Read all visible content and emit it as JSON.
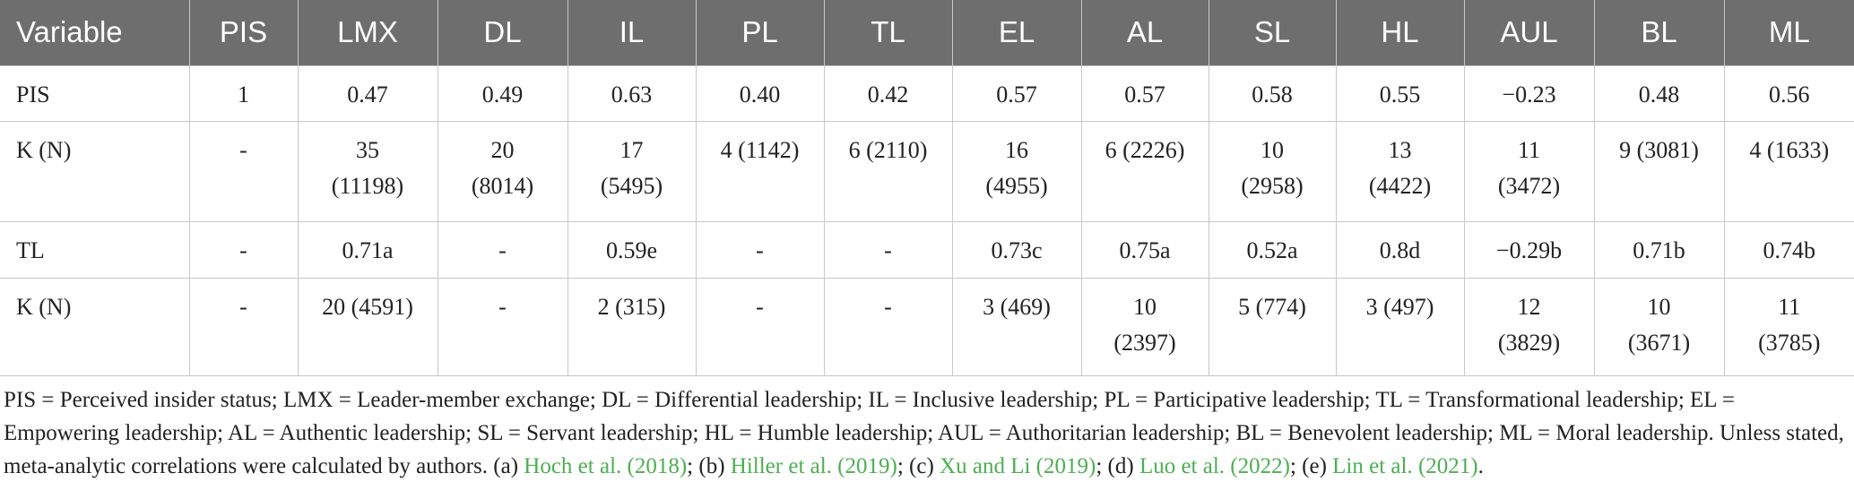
{
  "table": {
    "header": [
      "Variable",
      "PIS",
      "LMX",
      "DL",
      "IL",
      "PL",
      "TL",
      "EL",
      "AL",
      "SL",
      "HL",
      "AUL",
      "BL",
      "ML"
    ],
    "rows": [
      [
        "PIS",
        "1",
        "0.47",
        "0.49",
        "0.63",
        "0.40",
        "0.42",
        "0.57",
        "0.57",
        "0.58",
        "0.55",
        "−0.23",
        "0.48",
        "0.56"
      ],
      [
        "K (N)",
        "-",
        "35 (11198)",
        "20 (8014)",
        "17 (5495)",
        "4 (1142)",
        "6 (2110)",
        "16 (4955)",
        "6 (2226)",
        "10 (2958)",
        "13 (4422)",
        "11 (3472)",
        "9 (3081)",
        "4 (1633)"
      ],
      [
        "TL",
        "-",
        "0.71a",
        "-",
        "0.59e",
        "-",
        "-",
        "0.73c",
        "0.75a",
        "0.52a",
        "0.8d",
        "−0.29b",
        "0.71b",
        "0.74b"
      ],
      [
        "K (N)",
        "-",
        "20 (4591)",
        "-",
        "2 (315)",
        "-",
        "-",
        "3 (469)",
        "10 (2397)",
        "5 (774)",
        "3 (497)",
        "12 (3829)",
        "10 (3671)",
        "11 (3785)"
      ]
    ]
  },
  "footnote": [
    {
      "text": "PIS = Perceived insider status; LMX = Leader-member exchange; DL = Differential leadership; IL = Inclusive leadership; PL = Participative leadership; TL = Transformational leadership; EL = Empowering leadership; AL = Authentic leadership; SL = Servant leadership; HL = Humble leadership; AUL = Authoritarian leadership; BL = Benevolent leadership; ML = Moral leadership. Unless stated, meta-analytic correlations were calculated by authors. (a) "
    },
    {
      "link": "Hoch et al. (2018)"
    },
    {
      "text": "; (b) "
    },
    {
      "link": "Hiller et al. (2019)"
    },
    {
      "text": "; (c) "
    },
    {
      "link": "Xu and Li (2019)"
    },
    {
      "text": "; (d) "
    },
    {
      "link": "Luo et al. (2022)"
    },
    {
      "text": "; (e) "
    },
    {
      "link": "Lin et al. (2021)"
    },
    {
      "text": "."
    }
  ]
}
